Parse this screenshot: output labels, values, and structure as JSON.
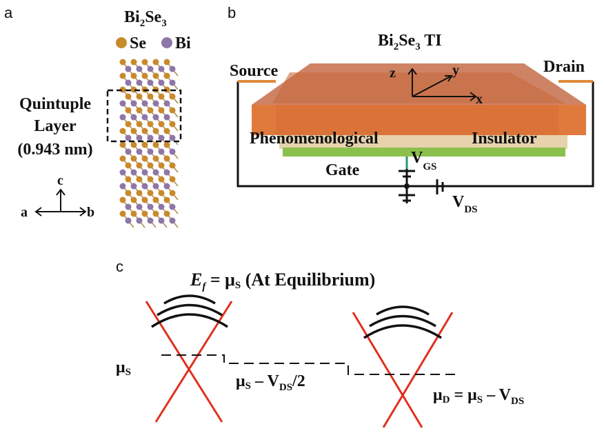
{
  "panels": {
    "a": {
      "label": "a",
      "formula": [
        "Bi",
        "2",
        "Se",
        "3"
      ],
      "legend": [
        "Se",
        "Bi"
      ],
      "annotation": [
        "Quintuple",
        "Layer",
        "(0.943 nm)"
      ],
      "axes": [
        "c",
        "a",
        "b"
      ]
    },
    "b": {
      "label": "b",
      "title": [
        "Bi",
        "2",
        "Se",
        "3",
        " TI"
      ],
      "source": "Source",
      "drain": "Drain",
      "axes": [
        "z",
        "y",
        "x"
      ],
      "layers": [
        "Phenomenological",
        "Insulator"
      ],
      "gate": "Gate",
      "vgs": [
        "V",
        "GS"
      ],
      "vds": [
        "V",
        "DS"
      ]
    },
    "c": {
      "label": "c",
      "title": [
        "E",
        "f",
        " = μ",
        "S",
        " (At Equilibrium)"
      ],
      "mu_s": [
        "μ",
        "S"
      ],
      "mid": [
        "μ",
        "S",
        " – V",
        "DS",
        "/2"
      ],
      "mu_d": [
        "μ",
        "D",
        " = μ",
        "S",
        " – V",
        "DS"
      ]
    }
  }
}
